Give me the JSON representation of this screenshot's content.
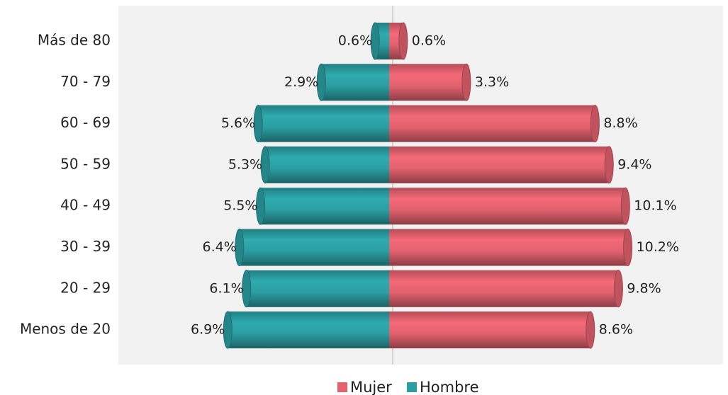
{
  "chart_data": {
    "type": "pyramid",
    "categories": [
      "Más de 80",
      "70 - 79",
      "60 - 69",
      "50 - 59",
      "40 - 49",
      "30 - 39",
      "20 - 29",
      "Menos de 20"
    ],
    "series": [
      {
        "name": "Mujer",
        "color": "#e2626f",
        "values": [
          0.6,
          3.3,
          8.8,
          9.4,
          10.1,
          10.2,
          9.8,
          8.6
        ],
        "value_labels": [
          "0.6%",
          "3.3%",
          "8.8%",
          "9.4%",
          "10.1%",
          "10.2%",
          "9.8%",
          "8.6%"
        ]
      },
      {
        "name": "Hombre",
        "color": "#2b9ea2",
        "values": [
          0.6,
          2.9,
          5.6,
          5.3,
          5.5,
          6.4,
          6.1,
          6.9
        ],
        "value_labels": [
          "0.6%",
          "2.9%",
          "5.6%",
          "5.3%",
          "5.5%",
          "6.4%",
          "6.1%",
          "6.9%"
        ]
      }
    ]
  }
}
